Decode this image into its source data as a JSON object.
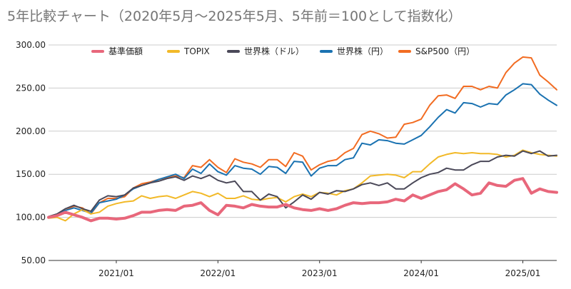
{
  "chart_data": {
    "type": "line",
    "title": "5年比較チャート（2020年5月～2025年5月、5年前＝100として指数化）",
    "xlabel": "",
    "ylabel": "",
    "ylim": [
      50,
      300
    ],
    "yticks": [
      "50.00",
      "100.00",
      "150.00",
      "200.00",
      "250.00",
      "300.00"
    ],
    "xticks": [
      {
        "label": "2021/01",
        "x": "2021-01"
      },
      {
        "label": "2022/01",
        "x": "2022-01"
      },
      {
        "label": "2023/01",
        "x": "2023-01"
      },
      {
        "label": "2024/01",
        "x": "2024-01"
      },
      {
        "label": "2025/01",
        "x": "2025-01"
      }
    ],
    "grid": true,
    "legend_position": "top",
    "x": [
      "2020-05",
      "2020-06",
      "2020-07",
      "2020-08",
      "2020-09",
      "2020-10",
      "2020-11",
      "2020-12",
      "2021-01",
      "2021-02",
      "2021-03",
      "2021-04",
      "2021-05",
      "2021-06",
      "2021-07",
      "2021-08",
      "2021-09",
      "2021-10",
      "2021-11",
      "2021-12",
      "2022-01",
      "2022-02",
      "2022-03",
      "2022-04",
      "2022-05",
      "2022-06",
      "2022-07",
      "2022-08",
      "2022-09",
      "2022-10",
      "2022-11",
      "2022-12",
      "2023-01",
      "2023-02",
      "2023-03",
      "2023-04",
      "2023-05",
      "2023-06",
      "2023-07",
      "2023-08",
      "2023-09",
      "2023-10",
      "2023-11",
      "2023-12",
      "2024-01",
      "2024-02",
      "2024-03",
      "2024-04",
      "2024-05",
      "2024-06",
      "2024-07",
      "2024-08",
      "2024-09",
      "2024-10",
      "2024-11",
      "2024-12",
      "2025-01",
      "2025-02",
      "2025-03",
      "2025-04",
      "2025-05"
    ],
    "series": [
      {
        "name": "基準価額",
        "color": "#e8677b",
        "width": 4,
        "values": [
          100,
          102,
          106,
          103,
          100,
          96,
          99,
          99,
          98,
          99,
          102,
          106,
          106,
          108,
          109,
          108,
          113,
          114,
          117,
          108,
          103,
          114,
          113,
          111,
          115,
          113,
          112,
          112,
          115,
          111,
          109,
          108,
          110,
          108,
          110,
          114,
          117,
          116,
          117,
          117,
          118,
          121,
          119,
          126,
          122,
          126,
          130,
          132,
          139,
          133,
          126,
          128,
          140,
          137,
          136,
          143,
          145,
          128,
          133,
          130,
          129
        ]
      },
      {
        "name": "TOPIX",
        "color": "#f2b928",
        "width": 2,
        "values": [
          99,
          100,
          96,
          104,
          109,
          104,
          106,
          113,
          116,
          118,
          119,
          125,
          122,
          124,
          125,
          122,
          126,
          130,
          128,
          124,
          128,
          122,
          122,
          125,
          121,
          120,
          122,
          123,
          118,
          124,
          127,
          124,
          129,
          128,
          126,
          131,
          133,
          140,
          148,
          149,
          150,
          149,
          146,
          153,
          153,
          162,
          170,
          173,
          175,
          174,
          175,
          174,
          174,
          173,
          170,
          172,
          178,
          175,
          173,
          172,
          171
        ]
      },
      {
        "name": "世界株（ドル）",
        "color": "#4a4858",
        "width": 2,
        "values": [
          101,
          104,
          110,
          114,
          110,
          107,
          120,
          125,
          124,
          126,
          134,
          137,
          140,
          142,
          145,
          147,
          143,
          148,
          145,
          149,
          143,
          140,
          142,
          130,
          130,
          120,
          127,
          124,
          111,
          118,
          126,
          121,
          129,
          127,
          131,
          130,
          133,
          138,
          140,
          137,
          140,
          133,
          133,
          140,
          146,
          150,
          152,
          157,
          155,
          155,
          161,
          165,
          165,
          170,
          172,
          171,
          177,
          174,
          177,
          171,
          172
        ]
      },
      {
        "name": "世界株（円）",
        "color": "#1a72b1",
        "width": 2,
        "values": [
          100,
          103,
          108,
          111,
          108,
          105,
          117,
          119,
          121,
          126,
          133,
          137,
          140,
          144,
          147,
          150,
          145,
          156,
          151,
          162,
          153,
          149,
          160,
          157,
          156,
          150,
          159,
          158,
          151,
          165,
          164,
          148,
          157,
          160,
          160,
          167,
          169,
          186,
          184,
          190,
          189,
          186,
          185,
          190,
          195,
          205,
          216,
          225,
          221,
          233,
          232,
          228,
          232,
          231,
          242,
          248,
          255,
          254,
          243,
          236,
          230
        ]
      },
      {
        "name": "S&P500（円）",
        "color": "#f26c22",
        "width": 2,
        "values": [
          100,
          102,
          108,
          113,
          111,
          104,
          117,
          122,
          122,
          124,
          134,
          139,
          141,
          144,
          146,
          148,
          146,
          160,
          158,
          167,
          158,
          152,
          168,
          164,
          162,
          158,
          167,
          167,
          159,
          175,
          171,
          155,
          161,
          165,
          167,
          175,
          180,
          196,
          200,
          197,
          192,
          193,
          208,
          210,
          214,
          230,
          241,
          242,
          238,
          252,
          252,
          248,
          252,
          250,
          268,
          279,
          286,
          285,
          265,
          257,
          248
        ]
      }
    ]
  }
}
